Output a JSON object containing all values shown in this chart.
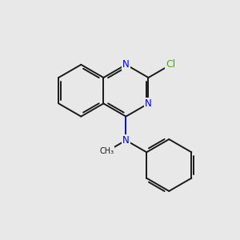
{
  "background_color": "#e8e8e8",
  "bond_color": "#1a1a1a",
  "n_color": "#0000ee",
  "cl_color": "#33bb00",
  "lw": 1.4,
  "font_size": 8.5,
  "figsize": [
    3.0,
    3.0
  ],
  "dpi": 100,
  "xlim": [
    0,
    10
  ],
  "ylim": [
    0,
    10
  ]
}
